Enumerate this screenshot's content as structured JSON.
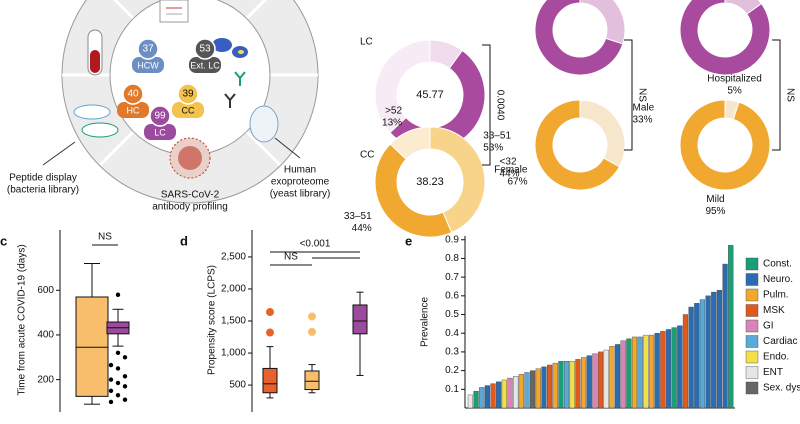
{
  "diagram": {
    "groups": [
      {
        "count": 37,
        "label": "HCW",
        "color": "#6b8fc4"
      },
      {
        "count": 53,
        "label": "Ext. LC",
        "color": "#555555"
      },
      {
        "count": 40,
        "label": "HC",
        "color": "#e07a2a"
      },
      {
        "count": 39,
        "label": "CC",
        "color": "#f2c34e"
      },
      {
        "count": 99,
        "label": "LC",
        "color": "#9b4a9e"
      }
    ],
    "assays": [
      [
        "Peptide display",
        "(bacteria library)"
      ],
      [
        "SARS-CoV-2",
        "antibody profiling"
      ],
      [
        "Human",
        "exoproteome",
        "(yeast library)"
      ]
    ]
  },
  "chart_data": [
    {
      "type": "pie",
      "row_labels": [
        "LC",
        "CC"
      ],
      "comparisons": [
        "0.0040",
        "NS",
        "NS"
      ],
      "charts": [
        {
          "center_label": "45.77",
          "categories": [
            null,
            "33–51",
            null
          ],
          "values": [
            10,
            53,
            37
          ],
          "value_labels": [
            null,
            "53%",
            null
          ],
          "colors": [
            "#f0dced",
            "#a84a9e",
            "#f7ecf5"
          ]
        },
        {
          "categories": [
            null,
            null
          ],
          "values": [
            30,
            70
          ],
          "value_labels": [
            null,
            null
          ],
          "colors": [
            "#e2bfdc",
            "#a84a9e"
          ]
        },
        {
          "categories": [
            null,
            null
          ],
          "values": [
            15,
            85
          ],
          "value_labels": [
            null,
            null
          ],
          "colors": [
            "#e2bfdc",
            "#a84a9e"
          ]
        },
        {
          "center_label": "38.23",
          "categories": [
            "<32",
            "33–51",
            ">52"
          ],
          "values": [
            44,
            44,
            13
          ],
          "value_labels": [
            "44%",
            "44%",
            "13%"
          ],
          "colors": [
            "#f7d48a",
            "#f0a830",
            "#fbecd0"
          ]
        },
        {
          "categories": [
            "Male",
            "Female"
          ],
          "values": [
            33,
            67
          ],
          "value_labels": [
            "33%",
            "67%"
          ],
          "colors": [
            "#f6e6cc",
            "#f0a830"
          ]
        },
        {
          "categories": [
            "Hospitalized",
            "Mild"
          ],
          "values": [
            5,
            95
          ],
          "value_labels": [
            "5%",
            "95%"
          ],
          "colors": [
            "#f6e6cc",
            "#f0a830"
          ]
        }
      ]
    },
    {
      "type": "box",
      "panel": "c",
      "ylabel": "Time from acute COVID-19 (days)",
      "ylim": [
        55,
        870
      ],
      "yticks": [
        200,
        400,
        600
      ],
      "annotations": [
        "NS"
      ],
      "boxes": [
        {
          "color": "#f9be6b",
          "outlier_color": "#000000",
          "whisker_low": 90,
          "q1": 125,
          "median": 345,
          "q3": 570,
          "whisker_high": 720,
          "outliers": []
        },
        {
          "color": "#9b4a9e",
          "outlier_color": "#000000",
          "whisker_low": 350,
          "q1": 405,
          "median": 432,
          "q3": 458,
          "whisker_high": 515,
          "outliers": [
            580,
            320,
            300,
            265,
            250,
            215,
            200,
            185,
            170,
            150,
            130,
            110,
            100
          ]
        }
      ]
    },
    {
      "type": "box",
      "panel": "d",
      "ylabel": "Propensity score (LCPS)",
      "ylim": [
        80,
        2920
      ],
      "yticks": [
        500,
        {
          "value": 1000,
          "label": "1,000"
        },
        {
          "value": 1500,
          "label": "1,500"
        },
        {
          "value": 2000,
          "label": "2,000"
        },
        {
          "value": 2500,
          "label": "2,500"
        }
      ],
      "annotations": [
        "NS",
        "<0.001"
      ],
      "boxes": [
        {
          "color": "#e8602c",
          "outlier_color": "#e8602c",
          "whisker_low": 300,
          "q1": 380,
          "median": 520,
          "q3": 760,
          "whisker_high": 1100,
          "outliers": [
            1640,
            1320
          ]
        },
        {
          "color": "#f9be6b",
          "outlier_color": "#f9be6b",
          "whisker_low": 380,
          "q1": 430,
          "median": 560,
          "q3": 720,
          "whisker_high": 820,
          "outliers": [
            1570,
            1330
          ]
        },
        {
          "color": "#9b4a9e",
          "outlier_color": "#9b4a9e",
          "whisker_low": 650,
          "q1": 1300,
          "median": 1500,
          "q3": 1750,
          "whisker_high": 1950,
          "outliers": []
        }
      ]
    },
    {
      "type": "bar",
      "panel": "e",
      "ylabel": "Prevalence",
      "ylim": [
        0,
        0.92
      ],
      "yticks": [
        0.1,
        0.2,
        0.3,
        0.4,
        0.5,
        0.6,
        0.7,
        0.8,
        0.9
      ],
      "legend": [
        {
          "name": "Const.",
          "color": "#1a9e77"
        },
        {
          "name": "Neuro.",
          "color": "#2b6cb0"
        },
        {
          "name": "Pulm.",
          "color": "#f0a830"
        },
        {
          "name": "MSK",
          "color": "#e05a1e"
        },
        {
          "name": "GI",
          "color": "#d784b8"
        },
        {
          "name": "Cardiac",
          "color": "#5aa9d6"
        },
        {
          "name": "Endo.",
          "color": "#f2e04a"
        },
        {
          "name": "ENT",
          "color": "#e6e6e6"
        },
        {
          "name": "Sex. dys.",
          "color": "#666666"
        }
      ],
      "categories": [
        null,
        null,
        null,
        null,
        null,
        null,
        null,
        null,
        null,
        null,
        null,
        null,
        null,
        null,
        null,
        null,
        null,
        null,
        null,
        null,
        null,
        null,
        null,
        null,
        null,
        null,
        null,
        null,
        null,
        null,
        null,
        null,
        null,
        null,
        null,
        null,
        null,
        null,
        null,
        null,
        null,
        null,
        null,
        null,
        null,
        null,
        null
      ],
      "values": [
        0.07,
        0.09,
        0.11,
        0.12,
        0.13,
        0.14,
        0.15,
        0.16,
        0.17,
        0.18,
        0.19,
        0.2,
        0.21,
        0.22,
        0.23,
        0.24,
        0.25,
        0.25,
        0.25,
        0.26,
        0.27,
        0.28,
        0.29,
        0.3,
        0.31,
        0.33,
        0.34,
        0.36,
        0.37,
        0.38,
        0.38,
        0.39,
        0.39,
        0.4,
        0.41,
        0.42,
        0.43,
        0.44,
        0.5,
        0.54,
        0.56,
        0.58,
        0.6,
        0.62,
        0.63,
        0.77,
        0.87
      ],
      "groups": [
        7,
        0,
        5,
        1,
        3,
        1,
        6,
        4,
        7,
        2,
        5,
        8,
        2,
        1,
        3,
        2,
        0,
        5,
        6,
        3,
        2,
        1,
        4,
        3,
        7,
        2,
        1,
        4,
        0,
        2,
        5,
        6,
        2,
        1,
        3,
        1,
        0,
        1,
        3,
        1,
        1,
        5,
        1,
        1,
        1,
        1,
        0
      ]
    }
  ]
}
